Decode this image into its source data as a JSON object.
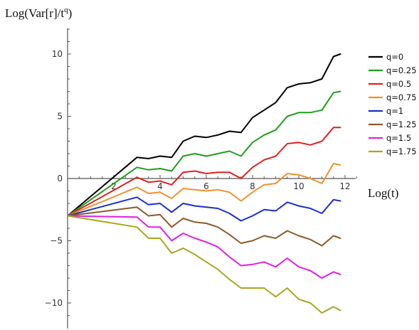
{
  "chart_data": {
    "type": "line",
    "ylabel": "Log(Var[r]/t^q)",
    "ylabel_main": "Log(Var[r]/t",
    "ylabel_sup": "q",
    "ylabel_close": ")",
    "xlabel": "Log(t)",
    "xlim": [
      0,
      12.5
    ],
    "ylim": [
      -11.5,
      12.5
    ],
    "x_ticks": [
      2,
      4,
      6,
      8,
      10,
      12
    ],
    "y_ticks": [
      -10,
      -5,
      0,
      5,
      10
    ],
    "grid": false,
    "legend_position": "right",
    "series": [
      {
        "name": "q=0",
        "color": "#000000",
        "x": [
          0,
          3,
          3.5,
          4,
          4.5,
          5,
          5.5,
          6,
          6.5,
          7,
          7.5,
          8,
          8.5,
          9,
          9.5,
          10,
          10.5,
          11,
          11.5,
          11.8
        ],
        "y": [
          -3,
          1.7,
          1.6,
          1.8,
          1.7,
          3.0,
          3.4,
          3.3,
          3.5,
          3.8,
          3.7,
          4.9,
          5.5,
          6.1,
          7.3,
          7.6,
          7.7,
          8.0,
          9.8,
          10.0
        ]
      },
      {
        "name": "q=0.25",
        "color": "#1e9e1e",
        "x": [
          0,
          3,
          3.5,
          4,
          4.5,
          5,
          5.5,
          6,
          6.5,
          7,
          7.5,
          8,
          8.5,
          9,
          9.5,
          10,
          10.5,
          11,
          11.5,
          11.8
        ],
        "y": [
          -3,
          0.9,
          0.7,
          0.8,
          0.6,
          1.8,
          2.0,
          1.8,
          2.0,
          2.2,
          1.8,
          2.9,
          3.5,
          3.9,
          5.0,
          5.3,
          5.3,
          5.5,
          6.9,
          7.0
        ]
      },
      {
        "name": "q=0.5",
        "color": "#e02020",
        "x": [
          0,
          3,
          3.5,
          4,
          4.5,
          5,
          5.5,
          6,
          6.5,
          7,
          7.5,
          8,
          8.5,
          9,
          9.5,
          10,
          10.5,
          11,
          11.5,
          11.8
        ],
        "y": [
          -3,
          0.1,
          -0.3,
          -0.2,
          -0.5,
          0.5,
          0.6,
          0.4,
          0.5,
          0.5,
          0.0,
          0.9,
          1.5,
          1.8,
          2.8,
          2.9,
          2.7,
          3.0,
          4.1,
          4.1
        ]
      },
      {
        "name": "q=0.75",
        "color": "#f0922b",
        "x": [
          0,
          3,
          3.5,
          4,
          4.5,
          5,
          5.5,
          6,
          6.5,
          7,
          7.5,
          8,
          8.5,
          9,
          9.5,
          10,
          10.5,
          11,
          11.5,
          11.8
        ],
        "y": [
          -3,
          -0.7,
          -1.2,
          -1.1,
          -1.6,
          -0.8,
          -0.9,
          -1.0,
          -0.9,
          -1.1,
          -1.8,
          -1.1,
          -0.5,
          -0.4,
          0.4,
          0.3,
          0.0,
          -0.4,
          1.2,
          1.1
        ]
      },
      {
        "name": "q=1",
        "color": "#1a2ecf",
        "x": [
          0,
          3,
          3.5,
          4,
          4.5,
          5,
          5.5,
          6,
          6.5,
          7,
          7.5,
          8,
          8.5,
          9,
          9.5,
          10,
          10.5,
          11,
          11.5,
          11.8
        ],
        "y": [
          -3,
          -1.5,
          -2.1,
          -2.0,
          -2.7,
          -2.0,
          -2.2,
          -2.3,
          -2.4,
          -2.8,
          -3.4,
          -3.0,
          -2.5,
          -2.6,
          -1.9,
          -2.2,
          -2.4,
          -2.8,
          -1.7,
          -1.8
        ]
      },
      {
        "name": "q=1.25",
        "color": "#8b5a2b",
        "x": [
          0,
          3,
          3.5,
          4,
          4.5,
          5,
          5.5,
          6,
          6.5,
          7,
          7.5,
          8,
          8.5,
          9,
          9.5,
          10,
          10.5,
          11,
          11.5,
          11.8
        ],
        "y": [
          -3,
          -2.3,
          -3.0,
          -2.9,
          -3.9,
          -3.2,
          -3.5,
          -3.6,
          -3.9,
          -4.5,
          -5.2,
          -5.0,
          -4.6,
          -4.8,
          -4.2,
          -4.6,
          -4.9,
          -5.4,
          -4.6,
          -4.8
        ]
      },
      {
        "name": "q=1.5",
        "color": "#e020e0",
        "x": [
          0,
          3,
          3.5,
          4,
          4.5,
          5,
          5.5,
          6,
          6.5,
          7,
          7.5,
          8,
          8.5,
          9,
          9.5,
          10,
          10.5,
          11,
          11.5,
          11.8
        ],
        "y": [
          -3,
          -3.1,
          -3.9,
          -3.9,
          -5.0,
          -4.4,
          -4.8,
          -5.1,
          -5.5,
          -6.3,
          -7.0,
          -6.9,
          -6.7,
          -7.1,
          -6.4,
          -7.1,
          -7.4,
          -8.0,
          -7.5,
          -7.7
        ]
      },
      {
        "name": "q=1.75",
        "color": "#a8a820",
        "x": [
          0,
          3,
          3.5,
          4,
          4.5,
          5,
          5.5,
          6,
          6.5,
          7,
          7.5,
          8,
          8.5,
          9,
          9.5,
          10,
          10.5,
          11,
          11.5,
          11.8
        ],
        "y": [
          -3,
          -3.9,
          -4.8,
          -4.8,
          -6.0,
          -5.6,
          -6.1,
          -6.7,
          -7.3,
          -8.1,
          -8.8,
          -8.8,
          -8.8,
          -9.5,
          -8.8,
          -9.7,
          -10.0,
          -10.8,
          -10.3,
          -10.6
        ]
      }
    ]
  }
}
